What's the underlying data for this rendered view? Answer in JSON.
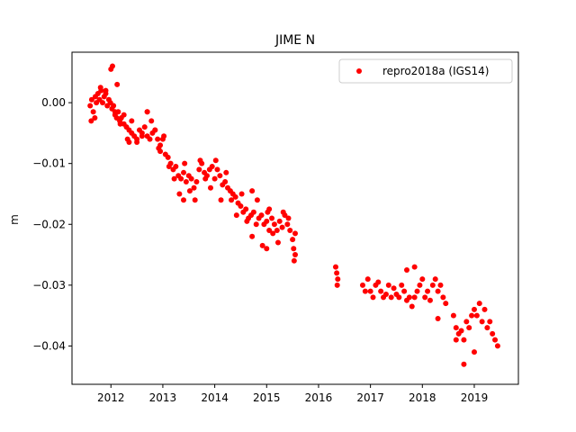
{
  "chart_data": {
    "type": "scatter",
    "title": "JIME N",
    "xlabel": "",
    "ylabel": "m",
    "xlim": [
      2011.25,
      2019.85
    ],
    "ylim": [
      -0.0463,
      0.0083
    ],
    "x_ticks": [
      2012,
      2013,
      2014,
      2015,
      2016,
      2017,
      2018,
      2019
    ],
    "x_tick_labels": [
      "2012",
      "2013",
      "2014",
      "2015",
      "2016",
      "2017",
      "2018",
      "2019"
    ],
    "y_ticks": [
      0.0,
      -0.01,
      -0.02,
      -0.03,
      -0.04
    ],
    "y_tick_labels": [
      "0.00",
      "−0.01",
      "−0.02",
      "−0.03",
      "−0.04"
    ],
    "legend_position": "top-right",
    "colors": {
      "series": "#ff0000",
      "axes": "#000000",
      "background": "#ffffff"
    },
    "series": [
      {
        "name": "repro2018a (IGS14)",
        "marker": "circle",
        "x": [
          2011.6,
          2011.63,
          2011.66,
          2011.69,
          2011.72,
          2011.75,
          2011.78,
          2011.81,
          2011.84,
          2011.87,
          2011.9,
          2011.93,
          2011.96,
          2011.99,
          2012.02,
          2012.05,
          2012.08,
          2012.11,
          2012.14,
          2012.17,
          2012.2,
          2012.25,
          2012.3,
          2012.35,
          2012.4,
          2012.45,
          2012.5,
          2012.55,
          2012.6,
          2012.65,
          2012.7,
          2012.75,
          2012.8,
          2012.85,
          2012.9,
          2012.95,
          2013.0,
          2013.05,
          2013.1,
          2013.15,
          2013.2,
          2013.25,
          2013.3,
          2013.35,
          2013.4,
          2013.45,
          2013.5,
          2013.55,
          2013.6,
          2013.65,
          2013.7,
          2013.75,
          2013.8,
          2013.85,
          2013.9,
          2013.95,
          2014.0,
          2014.05,
          2014.1,
          2014.15,
          2014.2,
          2014.25,
          2014.3,
          2014.35,
          2014.4,
          2014.45,
          2014.5,
          2014.55,
          2014.6,
          2014.65,
          2014.7,
          2014.75,
          2014.8,
          2014.85,
          2014.9,
          2014.95,
          2015.0,
          2015.05,
          2015.1,
          2015.15,
          2015.2,
          2015.25,
          2015.3,
          2015.35,
          2015.4,
          2015.45,
          2015.5,
          2015.55,
          2016.33,
          2016.35,
          2016.37,
          2016.85,
          2016.9,
          2016.95,
          2017.0,
          2017.05,
          2017.1,
          2017.15,
          2017.2,
          2017.25,
          2017.3,
          2017.35,
          2017.4,
          2017.45,
          2017.5,
          2017.55,
          2017.6,
          2017.65,
          2017.7,
          2017.75,
          2017.8,
          2017.85,
          2017.9,
          2017.95,
          2018.0,
          2018.05,
          2018.1,
          2018.15,
          2018.2,
          2018.25,
          2018.3,
          2018.35,
          2018.4,
          2018.45,
          2018.6,
          2018.65,
          2018.7,
          2018.75,
          2018.8,
          2018.85,
          2018.9,
          2018.95,
          2019.0,
          2019.05,
          2019.1,
          2019.15,
          2019.2,
          2019.25,
          2019.3,
          2019.35,
          2019.4,
          2019.45,
          2011.62,
          2011.7,
          2011.8,
          2011.9,
          2012.0,
          2012.03,
          2012.08,
          2012.12,
          2012.18,
          2012.25,
          2012.32,
          2012.4,
          2012.5,
          2012.6,
          2012.7,
          2012.78,
          2012.85,
          2012.92,
          2013.02,
          2013.12,
          2013.22,
          2013.32,
          2013.42,
          2013.52,
          2013.62,
          2013.72,
          2013.82,
          2013.92,
          2014.02,
          2014.12,
          2014.22,
          2014.32,
          2014.42,
          2014.52,
          2014.62,
          2014.72,
          2014.82,
          2014.92,
          2015.02,
          2015.12,
          2015.22,
          2015.32,
          2015.42,
          2015.52,
          2018.8,
          2019.0,
          2018.65,
          2017.85,
          2017.7,
          2018.3,
          2015.0,
          2015.05,
          2015.53,
          2015.55,
          2014.72,
          2013.4,
          2012.7,
          2012.35,
          2012.95,
          2016.36
        ],
        "y": [
          -0.0005,
          0.0005,
          -0.0015,
          -0.0025,
          0.0,
          0.0015,
          0.0005,
          0.002,
          0.0,
          0.001,
          0.0015,
          -0.0005,
          0.0005,
          0.0,
          -0.001,
          -0.0005,
          -0.002,
          -0.0025,
          -0.0015,
          -0.003,
          -0.0025,
          -0.0035,
          -0.004,
          -0.0045,
          -0.005,
          -0.0055,
          -0.006,
          -0.0045,
          -0.005,
          -0.004,
          -0.0055,
          -0.006,
          -0.005,
          -0.0045,
          -0.006,
          -0.007,
          -0.006,
          -0.0085,
          -0.009,
          -0.01,
          -0.011,
          -0.0105,
          -0.012,
          -0.0125,
          -0.0115,
          -0.013,
          -0.012,
          -0.0125,
          -0.014,
          -0.013,
          -0.011,
          -0.01,
          -0.0115,
          -0.012,
          -0.011,
          -0.0105,
          -0.0125,
          -0.011,
          -0.012,
          -0.0135,
          -0.013,
          -0.014,
          -0.0145,
          -0.015,
          -0.0155,
          -0.0165,
          -0.017,
          -0.018,
          -0.0175,
          -0.019,
          -0.0185,
          -0.018,
          -0.02,
          -0.019,
          -0.0185,
          -0.02,
          -0.0195,
          -0.021,
          -0.019,
          -0.02,
          -0.021,
          -0.0195,
          -0.0205,
          -0.0185,
          -0.02,
          -0.021,
          -0.0225,
          -0.0215,
          -0.027,
          -0.028,
          -0.029,
          -0.03,
          -0.031,
          -0.029,
          -0.031,
          -0.032,
          -0.03,
          -0.0295,
          -0.031,
          -0.032,
          -0.0315,
          -0.03,
          -0.032,
          -0.0305,
          -0.0315,
          -0.032,
          -0.03,
          -0.031,
          -0.0325,
          -0.032,
          -0.0335,
          -0.032,
          -0.031,
          -0.03,
          -0.029,
          -0.032,
          -0.031,
          -0.0325,
          -0.03,
          -0.029,
          -0.031,
          -0.03,
          -0.032,
          -0.033,
          -0.035,
          -0.037,
          -0.038,
          -0.0375,
          -0.039,
          -0.036,
          -0.037,
          -0.035,
          -0.034,
          -0.035,
          -0.033,
          -0.036,
          -0.034,
          -0.037,
          -0.036,
          -0.038,
          -0.039,
          -0.04,
          -0.003,
          0.001,
          0.0025,
          0.002,
          0.0055,
          0.006,
          -0.0015,
          0.003,
          -0.0035,
          -0.002,
          -0.006,
          -0.003,
          -0.0065,
          -0.0055,
          -0.0015,
          -0.003,
          -0.0045,
          -0.0075,
          -0.0055,
          -0.0105,
          -0.0125,
          -0.015,
          -0.01,
          -0.0145,
          -0.016,
          -0.0095,
          -0.0125,
          -0.014,
          -0.0095,
          -0.016,
          -0.0115,
          -0.016,
          -0.0185,
          -0.015,
          -0.0195,
          -0.022,
          -0.016,
          -0.0235,
          -0.018,
          -0.0215,
          -0.023,
          -0.018,
          -0.019,
          -0.024,
          -0.043,
          -0.041,
          -0.039,
          -0.027,
          -0.0275,
          -0.0355,
          -0.024,
          -0.0175,
          -0.026,
          -0.025,
          -0.0145,
          -0.016,
          -0.0015,
          -0.0065,
          -0.008,
          -0.03
        ]
      }
    ]
  }
}
